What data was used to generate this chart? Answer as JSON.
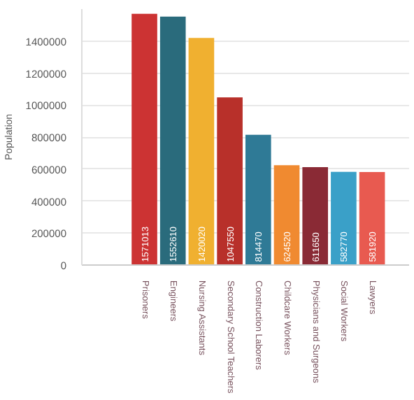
{
  "chart_data": {
    "type": "bar",
    "ylabel": "Population",
    "categories": [
      "Prisoners",
      "Engineers",
      "Nursing Assistants",
      "Secondary School Teachers",
      "Construction Laborers",
      "Childcare Workers",
      "Physicians and Surgeons",
      "Social Workers",
      "Lawyers"
    ],
    "values": [
      1571013,
      1552610,
      1420020,
      1047550,
      814470,
      624520,
      611650,
      582770,
      581920
    ],
    "colors": [
      "#cc3333",
      "#2a6b7c",
      "#f0b030",
      "#b8302a",
      "#2f7a96",
      "#f08a30",
      "#8a2a35",
      "#3aa0c8",
      "#e85a50"
    ],
    "ylim": [
      0,
      1600000
    ],
    "yticks": [
      0,
      200000,
      400000,
      600000,
      800000,
      1000000,
      1200000,
      1400000
    ],
    "grid": "y",
    "data_labels": true
  }
}
